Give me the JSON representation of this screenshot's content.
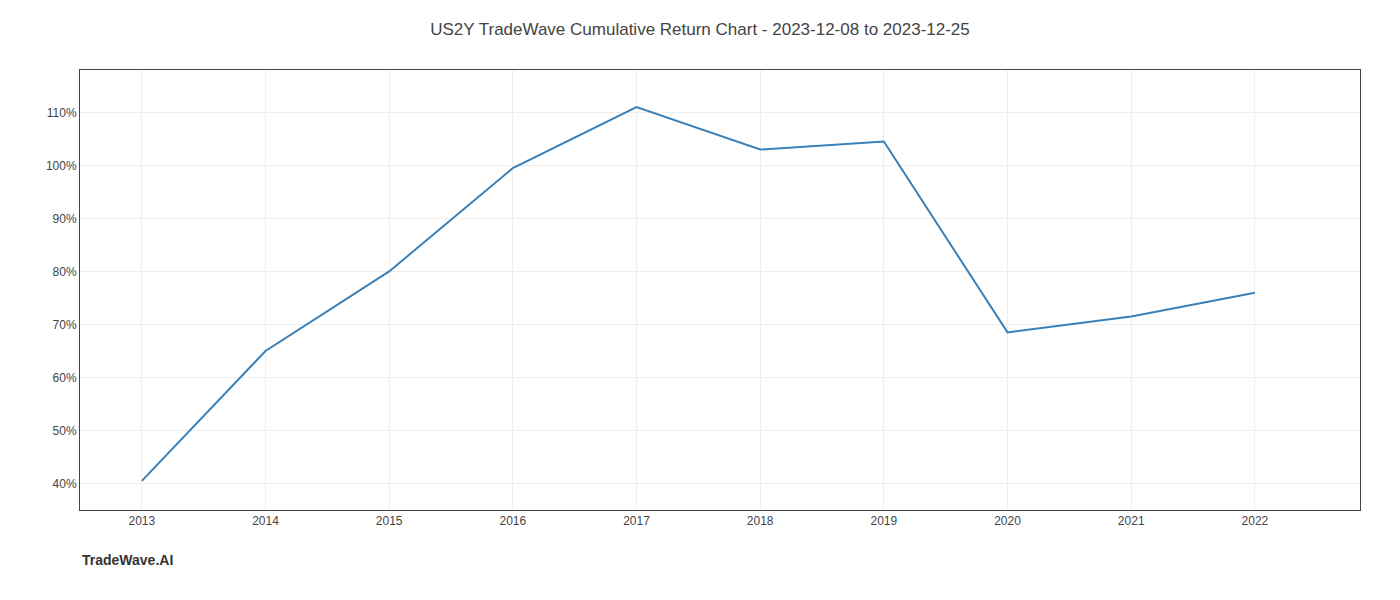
{
  "chart_data": {
    "type": "line",
    "title": "US2Y TradeWave Cumulative Return Chart - 2023-12-08 to 2023-12-25",
    "annotations": [
      "TradeWave.AI"
    ],
    "x": [
      2013,
      2014,
      2015,
      2016,
      2017,
      2018,
      2019,
      2020,
      2021,
      2022
    ],
    "values": [
      40.5,
      65.0,
      80.0,
      99.5,
      111.0,
      103.0,
      104.5,
      68.5,
      71.5,
      76.0
    ],
    "color": "#3a80b8",
    "xlim": [
      2012.5,
      2022.85
    ],
    "ylim": [
      35,
      118
    ],
    "xticks": [
      2013,
      2014,
      2015,
      2016,
      2017,
      2018,
      2019,
      2020,
      2021,
      2022
    ],
    "yticks": [
      {
        "value": 40,
        "label": "40%"
      },
      {
        "value": 50,
        "label": "50%"
      },
      {
        "value": 60,
        "label": "60%"
      },
      {
        "value": 70,
        "label": "70%"
      },
      {
        "value": 80,
        "label": "80%"
      },
      {
        "value": 90,
        "label": "90%"
      },
      {
        "value": 100,
        "label": "100%"
      },
      {
        "value": 110,
        "label": "110%"
      }
    ],
    "grid": true
  }
}
